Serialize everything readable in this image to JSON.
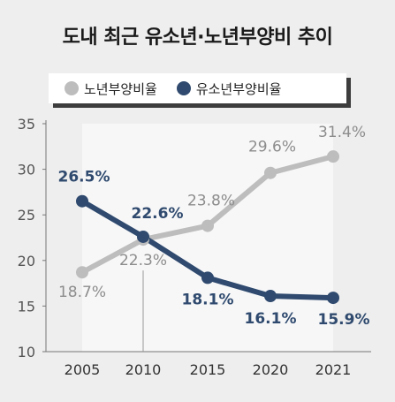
{
  "title": "도내 최근 유소년·노년부양비 추이",
  "colors": {
    "background": "#eeeeee",
    "plot_area": "#f7f7f8",
    "elderly": "#bdbdbd",
    "youth": "#2f4a6e",
    "axis": "#777777"
  },
  "legend": {
    "items": [
      {
        "label": "노년부양비율",
        "color": "#bdbdbd",
        "icon": "circle-icon"
      },
      {
        "label": "유소년부양비율",
        "color": "#2f4a6e",
        "icon": "circle-icon"
      }
    ]
  },
  "chart_data": {
    "type": "line",
    "title": "도내 최근 유소년·노년부양비 추이",
    "categories": [
      "2005",
      "2010",
      "2015",
      "2020",
      "2021"
    ],
    "ylim": [
      10,
      35
    ],
    "yticks": [
      10,
      15,
      20,
      25,
      30,
      35
    ],
    "grid": false,
    "legend_position": "top",
    "series": [
      {
        "name": "노년부양비율",
        "values": [
          18.7,
          22.3,
          23.8,
          29.6,
          31.4
        ],
        "labels": [
          "18.7%",
          "22.3%",
          "23.8%",
          "29.6%",
          "31.4%"
        ],
        "color": "#bdbdbd"
      },
      {
        "name": "유소년부양비율",
        "values": [
          26.5,
          22.6,
          18.1,
          16.1,
          15.9
        ],
        "labels": [
          "26.5%",
          "22.6%",
          "18.1%",
          "16.1%",
          "15.9%"
        ],
        "color": "#2f4a6e"
      }
    ]
  }
}
